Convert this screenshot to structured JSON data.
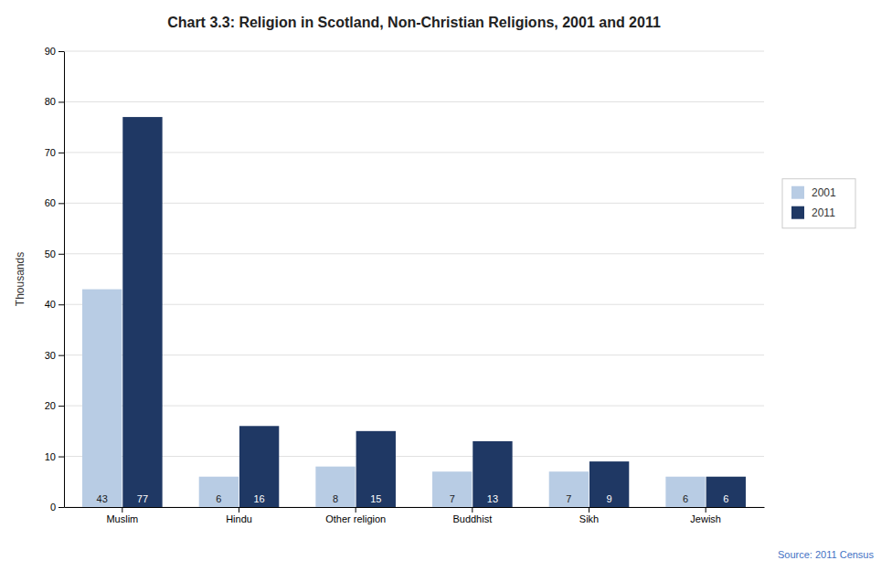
{
  "chart_data": {
    "type": "bar",
    "title": "Chart 3.3: Religion in Scotland, Non-Christian Religions, 2001 and 2011",
    "categories": [
      "Muslim",
      "Hindu",
      "Other religion",
      "Buddhist",
      "Sikh",
      "Jewish"
    ],
    "series": [
      {
        "name": "2001",
        "color": "#b8cce4",
        "values": [
          43,
          6,
          8,
          7,
          7,
          6
        ]
      },
      {
        "name": "2011",
        "color": "#1f3864",
        "values": [
          77,
          16,
          15,
          13,
          9,
          6
        ]
      }
    ],
    "ylabel": "Thousands",
    "ylim": [
      0,
      90
    ],
    "yticks": [
      0,
      10,
      20,
      30,
      40,
      50,
      60,
      70,
      80,
      90
    ],
    "grid": true,
    "legend": "right",
    "data_labels": true,
    "annotation": "Source: 2011 Census"
  }
}
